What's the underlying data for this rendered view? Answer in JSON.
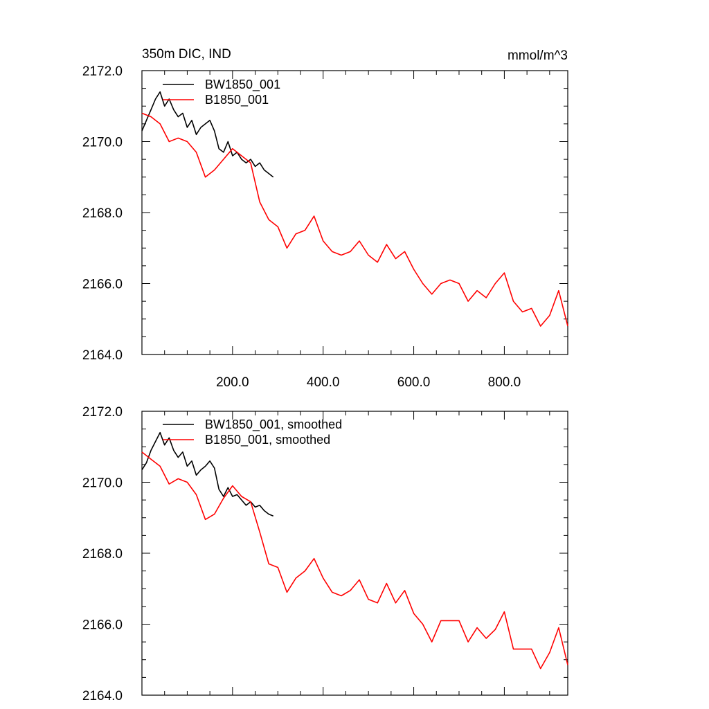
{
  "chart_data": [
    {
      "type": "line",
      "title": "350m DIC, IND",
      "units": "mmol/m^3",
      "xlim": [
        0,
        940
      ],
      "ylim": [
        2164.0,
        2172.0
      ],
      "x_ticks": [
        200,
        400,
        600,
        800
      ],
      "x_tick_labels": [
        "200.0",
        "400.0",
        "600.0",
        "800.0"
      ],
      "y_ticks": [
        2164,
        2166,
        2168,
        2170,
        2172
      ],
      "y_tick_labels": [
        "2164.0",
        "2166.0",
        "2168.0",
        "2170.0",
        "2172.0"
      ],
      "legend_position": "top-left",
      "series": [
        {
          "name": "BW1850_001",
          "color": "#000000",
          "x": [
            0,
            10,
            20,
            30,
            40,
            50,
            60,
            70,
            80,
            90,
            100,
            110,
            120,
            130,
            140,
            150,
            160,
            170,
            180,
            190,
            200,
            210,
            220,
            230,
            240,
            250,
            260,
            270,
            280,
            290
          ],
          "y": [
            2170.3,
            2170.6,
            2170.9,
            2171.2,
            2171.4,
            2171.0,
            2171.2,
            2170.9,
            2170.7,
            2170.8,
            2170.4,
            2170.6,
            2170.2,
            2170.4,
            2170.5,
            2170.6,
            2170.3,
            2169.8,
            2169.7,
            2170.0,
            2169.6,
            2169.7,
            2169.5,
            2169.4,
            2169.5,
            2169.3,
            2169.4,
            2169.2,
            2169.1,
            2169.0
          ]
        },
        {
          "name": "B1850_001",
          "color": "#ff0000",
          "x": [
            0,
            20,
            40,
            60,
            80,
            100,
            120,
            140,
            160,
            180,
            200,
            220,
            240,
            260,
            280,
            300,
            320,
            340,
            360,
            380,
            400,
            420,
            440,
            460,
            480,
            500,
            520,
            540,
            560,
            580,
            600,
            620,
            640,
            660,
            680,
            700,
            720,
            740,
            760,
            780,
            800,
            820,
            840,
            860,
            880,
            900,
            920,
            940
          ],
          "y": [
            2170.8,
            2170.7,
            2170.5,
            2170.0,
            2170.1,
            2170.0,
            2169.7,
            2169.0,
            2169.2,
            2169.5,
            2169.8,
            2169.6,
            2169.4,
            2168.3,
            2167.8,
            2167.6,
            2167.0,
            2167.4,
            2167.5,
            2167.9,
            2167.2,
            2166.9,
            2166.8,
            2166.9,
            2167.2,
            2166.8,
            2166.6,
            2167.1,
            2166.7,
            2166.9,
            2166.4,
            2166.0,
            2165.7,
            2166.0,
            2166.1,
            2166.0,
            2165.5,
            2165.8,
            2165.6,
            2166.0,
            2166.3,
            2165.5,
            2165.2,
            2165.3,
            2164.8,
            2165.1,
            2165.8,
            2164.8
          ]
        }
      ]
    },
    {
      "type": "line",
      "xlim": [
        0,
        940
      ],
      "ylim": [
        2164.0,
        2172.0
      ],
      "y_ticks": [
        2164,
        2166,
        2168,
        2170,
        2172
      ],
      "y_tick_labels": [
        "2164.0",
        "2166.0",
        "2168.0",
        "2170.0",
        "2172.0"
      ],
      "legend_position": "top-left",
      "series": [
        {
          "name": "BW1850_001, smoothed",
          "color": "#000000",
          "x": [
            0,
            10,
            20,
            30,
            40,
            50,
            60,
            70,
            80,
            90,
            100,
            110,
            120,
            130,
            140,
            150,
            160,
            170,
            180,
            190,
            200,
            210,
            220,
            230,
            240,
            250,
            260,
            270,
            280,
            290
          ],
          "y": [
            2170.35,
            2170.55,
            2170.9,
            2171.15,
            2171.4,
            2171.05,
            2171.25,
            2170.9,
            2170.7,
            2170.85,
            2170.45,
            2170.6,
            2170.2,
            2170.35,
            2170.45,
            2170.6,
            2170.4,
            2169.8,
            2169.6,
            2169.85,
            2169.6,
            2169.65,
            2169.5,
            2169.35,
            2169.45,
            2169.3,
            2169.35,
            2169.2,
            2169.1,
            2169.05
          ]
        },
        {
          "name": "B1850_001, smoothed",
          "color": "#ff0000",
          "x": [
            0,
            20,
            40,
            60,
            80,
            100,
            120,
            140,
            160,
            180,
            200,
            220,
            240,
            260,
            280,
            300,
            320,
            340,
            360,
            380,
            400,
            420,
            440,
            460,
            480,
            500,
            520,
            540,
            560,
            580,
            600,
            620,
            640,
            660,
            680,
            700,
            720,
            740,
            760,
            780,
            800,
            820,
            840,
            860,
            880,
            900,
            920,
            940
          ],
          "y": [
            2170.85,
            2170.65,
            2170.45,
            2169.95,
            2170.1,
            2170.0,
            2169.65,
            2168.95,
            2169.1,
            2169.55,
            2169.9,
            2169.6,
            2169.45,
            2168.6,
            2167.7,
            2167.6,
            2166.9,
            2167.3,
            2167.5,
            2167.85,
            2167.3,
            2166.9,
            2166.8,
            2166.95,
            2167.25,
            2166.7,
            2166.6,
            2167.15,
            2166.6,
            2166.95,
            2166.3,
            2166.0,
            2165.5,
            2166.1,
            2166.1,
            2166.1,
            2165.5,
            2165.9,
            2165.6,
            2165.85,
            2166.35,
            2165.3,
            2165.3,
            2165.3,
            2164.75,
            2165.2,
            2165.9,
            2164.85
          ]
        }
      ]
    }
  ]
}
